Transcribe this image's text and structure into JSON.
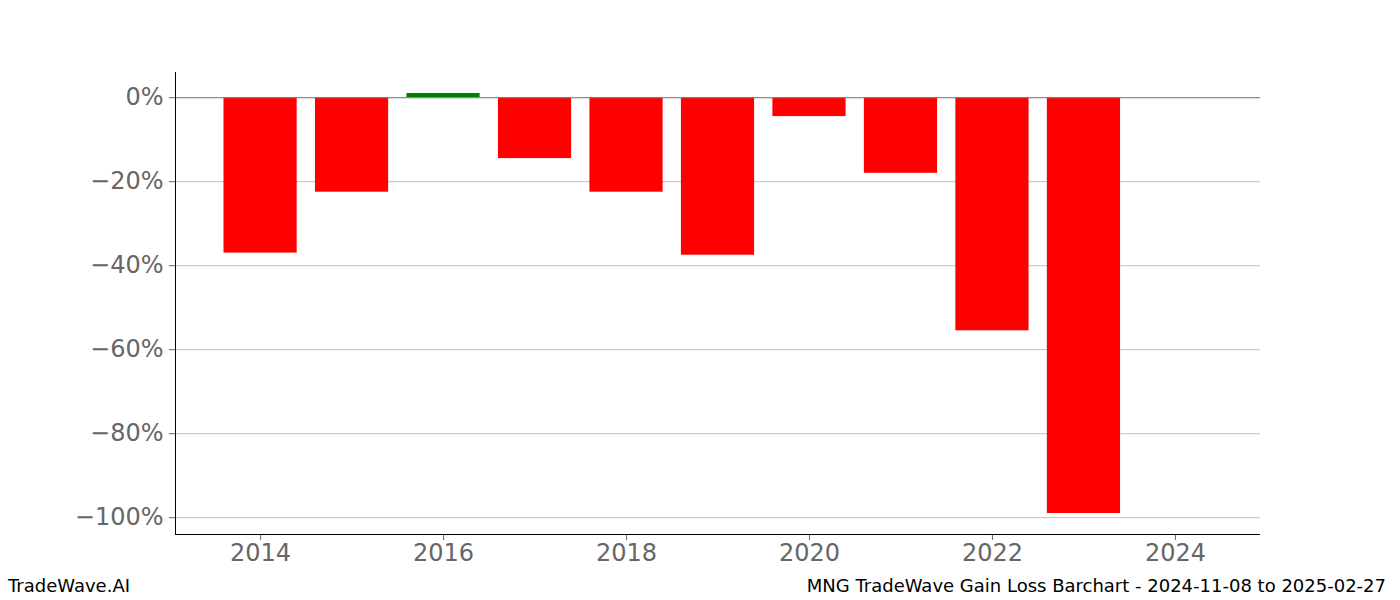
{
  "chart_data": {
    "type": "bar",
    "title": "MNG TradeWave Gain Loss Barchart - 2024-11-08 to 2025-02-27",
    "annotations": [
      "TradeWave.AI"
    ],
    "x": [
      2014,
      2015,
      2016,
      2017,
      2018,
      2019,
      2020,
      2021,
      2022,
      2023
    ],
    "values": [
      -37,
      -22.5,
      1,
      -14.5,
      -22.5,
      -37.5,
      -4.5,
      -18,
      -55.5,
      -99
    ],
    "colors": [
      "#ff0000",
      "#ff0000",
      "#008000",
      "#ff0000",
      "#ff0000",
      "#ff0000",
      "#ff0000",
      "#ff0000",
      "#ff0000",
      "#ff0000"
    ],
    "xlim": [
      2013.07,
      2024.93
    ],
    "xticks": [
      2014,
      2016,
      2018,
      2020,
      2022,
      2024
    ],
    "ylim": [
      -104,
      6
    ],
    "yticks": [
      {
        "value": 0,
        "label": "0%"
      },
      {
        "value": -20,
        "label": "−20%"
      },
      {
        "value": -40,
        "label": "−40%"
      },
      {
        "value": -60,
        "label": "−60%"
      },
      {
        "value": -80,
        "label": "−80%"
      },
      {
        "value": -100,
        "label": "−100%"
      }
    ],
    "grid": true
  }
}
